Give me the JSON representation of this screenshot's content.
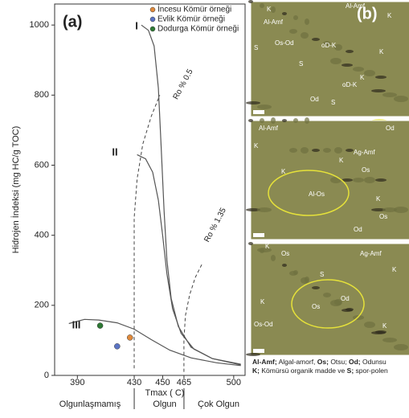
{
  "chart_data": {
    "type": "scatter",
    "panel_label": "(a)",
    "x_label": "Tmax ( C)",
    "y_label": "Hidrojen İndeksi (mg HC/g TOC)",
    "xlim": [
      374,
      508
    ],
    "ylim": [
      0,
      1060
    ],
    "xticks": [
      390,
      430,
      450,
      465,
      500
    ],
    "yticks": [
      0,
      200,
      400,
      600,
      800,
      1000
    ],
    "zones": [
      "Olgunlaşmamış",
      "Olgun",
      "Çok Olgun"
    ],
    "legend": "upper right",
    "series": [
      {
        "name": "İncesu Kömür örneği",
        "color": "#e08a3c",
        "x": [
          427
        ],
        "values": [
          108
        ]
      },
      {
        "name": "Evlik Kömür örneği",
        "color": "#5b74c4",
        "x": [
          418
        ],
        "values": [
          83
        ]
      },
      {
        "name": "Dodurga Kömür örneği",
        "color": "#2e7a34",
        "x": [
          406
        ],
        "values": [
          142
        ]
      }
    ],
    "curves": [
      {
        "name": "I",
        "color": "#555",
        "dash": false,
        "x": [
          435,
          440,
          444,
          447,
          449,
          451,
          453,
          456,
          461,
          470,
          485,
          505
        ],
        "values": [
          1000,
          985,
          940,
          820,
          650,
          470,
          330,
          220,
          140,
          80,
          48,
          30
        ]
      },
      {
        "name": "II",
        "color": "#555",
        "dash": false,
        "x": [
          432,
          438,
          443,
          447,
          450,
          453,
          457,
          463,
          472,
          485,
          505
        ],
        "values": [
          630,
          618,
          580,
          500,
          400,
          290,
          190,
          120,
          75,
          48,
          32
        ]
      },
      {
        "name": "III",
        "color": "#555",
        "dash": false,
        "x": [
          384,
          395,
          405,
          418,
          430,
          442,
          455,
          470,
          488,
          505
        ],
        "values": [
          148,
          160,
          158,
          150,
          132,
          102,
          72,
          50,
          36,
          28
        ]
      },
      {
        "name": "Ro % 0.5",
        "color": "#444",
        "dash": true,
        "x": [
          430,
          430,
          430,
          432,
          436,
          442,
          448
        ],
        "values": [
          20,
          250,
          450,
          560,
          660,
          740,
          800
        ]
      },
      {
        "name": "Ro % 1.35",
        "color": "#444",
        "dash": true,
        "x": [
          465,
          465,
          466,
          469,
          473,
          478
        ],
        "values": [
          10,
          100,
          170,
          230,
          280,
          320
        ]
      }
    ]
  },
  "photos": {
    "panel_label": "(b)",
    "images": [
      {
        "labels": [
          "K",
          "Al-Amf",
          "Al-Amf",
          "K",
          "Os-Od",
          "S",
          "oD-K",
          "K",
          "S",
          "K",
          "oD-K",
          "Od",
          "S"
        ]
      },
      {
        "labels": [
          "Al-Amf",
          "Od",
          "K",
          "Ag-Amf",
          "K",
          "K",
          "Os",
          "Al-Os",
          "K",
          "Os",
          "Od"
        ]
      },
      {
        "labels": [
          "K",
          "Os",
          "S",
          "Ag-Amf",
          "K",
          "K",
          "Os",
          "Od",
          "K",
          "Os-Od"
        ]
      }
    ],
    "caption": [
      [
        {
          "text": "Al-Amf;",
          "bold": true
        },
        {
          "text": " Algal-amorf, ",
          "bold": false
        },
        {
          "text": "Os;",
          "bold": true
        },
        {
          "text": " Otsu; ",
          "bold": false
        },
        {
          "text": "Od;",
          "bold": true
        },
        {
          "text": " Odunsu",
          "bold": false
        }
      ],
      [
        {
          "text": "K;",
          "bold": true
        },
        {
          "text": " Kömürsü organik madde ve ",
          "bold": false
        },
        {
          "text": "S;",
          "bold": true
        },
        {
          "text": " spor-polen",
          "bold": false
        }
      ]
    ]
  }
}
